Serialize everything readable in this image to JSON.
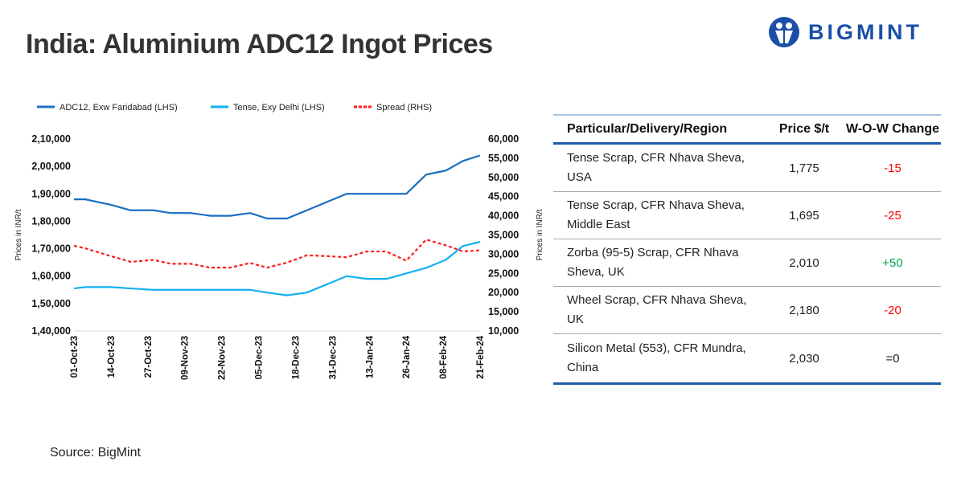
{
  "header": {
    "title": "India: Aluminium ADC12 Ingot Prices",
    "logo_text": "BIGMINT"
  },
  "source": "Source: BigMint",
  "colors": {
    "adc12": "#1a6fc0",
    "tense": "#12b0ef",
    "spread": "#ff1a1a",
    "brand": "#1a4fa8",
    "negative": "#ff0000",
    "positive": "#00a650"
  },
  "chart_data": {
    "type": "line",
    "left_axis": {
      "label": "Prices in INR/t",
      "ylim": [
        140000,
        210000
      ],
      "ticks": [
        "1,40,000",
        "1,50,000",
        "1,60,000",
        "1,70,000",
        "1,80,000",
        "1,90,000",
        "2,00,000",
        "2,10,000"
      ]
    },
    "right_axis": {
      "label": "Prices in INR/t",
      "ylim": [
        10000,
        60000
      ],
      "ticks": [
        "10,000",
        "15,000",
        "20,000",
        "25,000",
        "30,000",
        "35,000",
        "40,000",
        "45,000",
        "50,000",
        "55,000",
        "60,000"
      ]
    },
    "x_tick_labels": [
      "01-Oct-23",
      "14-Oct-23",
      "27-Oct-23",
      "09-Nov-23",
      "22-Nov-23",
      "05-Dec-23",
      "18-Dec-23",
      "31-Dec-23",
      "13-Jan-24",
      "26-Jan-24",
      "08-Feb-24",
      "21-Feb-24"
    ],
    "x": [
      "2023-10-01",
      "2023-10-05",
      "2023-10-14",
      "2023-10-21",
      "2023-10-29",
      "2023-11-04",
      "2023-11-11",
      "2023-11-18",
      "2023-11-25",
      "2023-12-02",
      "2023-12-08",
      "2023-12-15",
      "2023-12-22",
      "2023-12-29",
      "2024-01-05",
      "2024-01-12",
      "2024-01-19",
      "2024-01-26",
      "2024-02-02",
      "2024-02-09",
      "2024-02-15",
      "2024-02-21"
    ],
    "legend_position": "top",
    "grid": false,
    "series": [
      {
        "name": "ADC12, Exw Faridabad (LHS)",
        "axis": "left",
        "style": "solid",
        "values": [
          188000,
          188000,
          186000,
          184000,
          184000,
          183000,
          183000,
          182000,
          182000,
          183000,
          181000,
          181000,
          184000,
          187000,
          190000,
          190000,
          190000,
          190000,
          197000,
          198500,
          202000,
          204000
        ]
      },
      {
        "name": "Tense, Exy Delhi (LHS)",
        "axis": "left",
        "style": "solid",
        "values": [
          155500,
          156000,
          156000,
          155500,
          155000,
          155000,
          155000,
          155000,
          155000,
          155000,
          154000,
          153000,
          154000,
          157000,
          160000,
          159000,
          159000,
          161000,
          163000,
          166000,
          171000,
          172500
        ]
      },
      {
        "name": "Spread (RHS)",
        "axis": "right",
        "style": "dashed",
        "values": [
          32200,
          31500,
          29500,
          28000,
          28500,
          27500,
          27500,
          26500,
          26500,
          27700,
          26500,
          27800,
          29700,
          29500,
          29200,
          30700,
          30700,
          28300,
          33800,
          32300,
          30700,
          31000
        ]
      }
    ]
  },
  "table": {
    "headers": [
      "Particular/Delivery/Region",
      "Price $/t",
      "W-O-W Change"
    ],
    "rows": [
      {
        "name": "Tense Scrap, CFR Nhava Sheva, USA",
        "price": "1,775",
        "change": "-15",
        "dir": "negative"
      },
      {
        "name": "Tense Scrap, CFR Nhava Sheva, Middle East",
        "price": "1,695",
        "change": "-25",
        "dir": "negative"
      },
      {
        "name": "Zorba (95-5) Scrap, CFR Nhava Sheva, UK",
        "price": "2,010",
        "change": "+50",
        "dir": "positive"
      },
      {
        "name": "Wheel Scrap, CFR Nhava Sheva, UK",
        "price": "2,180",
        "change": "-20",
        "dir": "negative"
      },
      {
        "name": "Silicon Metal (553), CFR Mundra, China",
        "price": "2,030",
        "change": "=0",
        "dir": "neutral"
      }
    ]
  }
}
